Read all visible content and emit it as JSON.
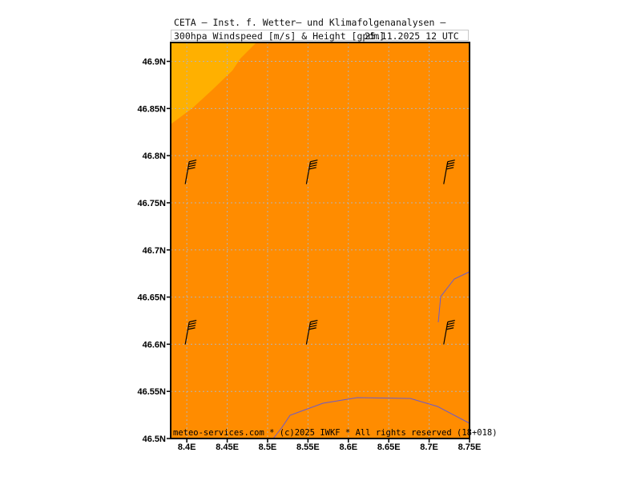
{
  "header": {
    "title_line1": "CETA – Inst. f. Wetter– und Klimafolgenanalysen –",
    "title_line2": "300hpa Windspeed [m/s] & Height [gpdm]",
    "title_date": "25.11.2025 12 UTC"
  },
  "footer": {
    "credit": "meteo-services.com * (c)2025 IWKF * All rights reserved (18+018)"
  },
  "map": {
    "lon_ticks": [
      "8.4E",
      "8.45E",
      "8.5E",
      "8.55E",
      "8.6E",
      "8.65E",
      "8.7E",
      "8.75E"
    ],
    "lat_ticks": [
      "46.9N",
      "46.85N",
      "46.8N",
      "46.75N",
      "46.7N",
      "46.65N",
      "46.6N",
      "46.55N",
      "46.5N"
    ],
    "colors": {
      "field_main": "#ff8c00",
      "field_high": "#ffb000",
      "grid": "#b4b4b4",
      "border_line": "#6a5acd",
      "wind_barb": "#000000"
    },
    "wind_barbs": [
      {
        "lon": 8.4,
        "lat": 46.78
      },
      {
        "lon": 8.55,
        "lat": 46.78
      },
      {
        "lon": 8.72,
        "lat": 46.78
      },
      {
        "lon": 8.4,
        "lat": 46.61
      },
      {
        "lon": 8.55,
        "lat": 46.61
      },
      {
        "lon": 8.72,
        "lat": 46.61
      }
    ]
  }
}
